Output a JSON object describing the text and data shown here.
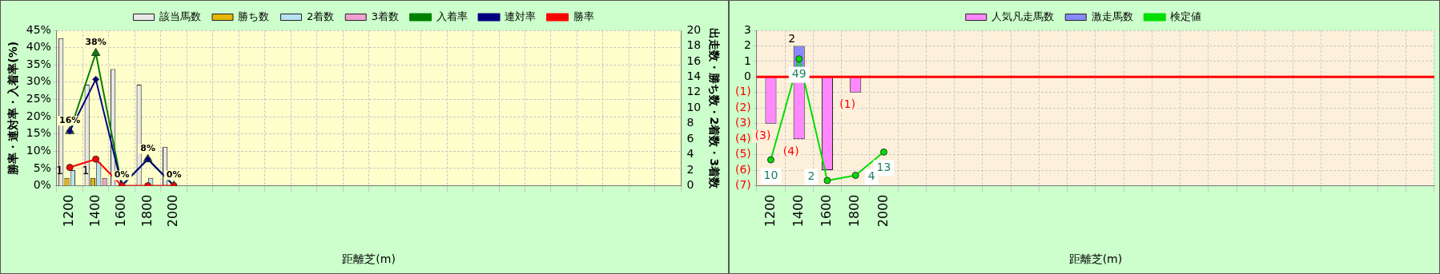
{
  "chart_data": [
    {
      "type": "bar",
      "xlabel": "距離芝(m)",
      "ylabel": "勝率・連対率・入着率(%)",
      "y2label": "出走数・勝ち数・2着数・3着数",
      "categories": [
        "1200",
        "1400",
        "1600",
        "1800",
        "2000",
        null,
        null,
        null,
        null,
        null,
        null,
        null,
        null,
        null,
        null,
        null,
        null,
        null,
        null,
        null,
        null,
        null,
        null,
        null
      ],
      "series": [
        {
          "name": "該当馬数",
          "type": "bar",
          "axis": "y2",
          "color": "#e8e8e8",
          "values": [
            19,
            13,
            15,
            13,
            5,
            null,
            null,
            null,
            null,
            null,
            null,
            null,
            null,
            null,
            null,
            null,
            null,
            null,
            null,
            null,
            null,
            null,
            null,
            null
          ]
        },
        {
          "name": "勝ち数",
          "type": "bar",
          "axis": "y2",
          "color": "#e6b800",
          "values": [
            1,
            1,
            0,
            0,
            0,
            null,
            null,
            null,
            null,
            null,
            null,
            null,
            null,
            null,
            null,
            null,
            null,
            null,
            null,
            null,
            null,
            null,
            null,
            null
          ],
          "value_labels": [
            "1",
            "1",
            null,
            null,
            null,
            null,
            null,
            null,
            null,
            null,
            null,
            null,
            null,
            null,
            null,
            null,
            null,
            null,
            null,
            null,
            null,
            null,
            null,
            null
          ]
        },
        {
          "name": "2着数",
          "type": "bar",
          "axis": "y2",
          "color": "#b4e4f4",
          "values": [
            2,
            3,
            0,
            1,
            0,
            null,
            null,
            null,
            null,
            null,
            null,
            null,
            null,
            null,
            null,
            null,
            null,
            null,
            null,
            null,
            null,
            null,
            null,
            null
          ]
        },
        {
          "name": "3着数",
          "type": "bar",
          "axis": "y2",
          "color": "#f0a0d0",
          "values": [
            0,
            1,
            0,
            0,
            0,
            null,
            null,
            null,
            null,
            null,
            null,
            null,
            null,
            null,
            null,
            null,
            null,
            null,
            null,
            null,
            null,
            null,
            null,
            null
          ]
        },
        {
          "name": "入着率",
          "type": "line",
          "color": "#008000",
          "marker": "triangle",
          "values": [
            15.8,
            38.4,
            0,
            7.7,
            0,
            null,
            null,
            null,
            null,
            null,
            null,
            null,
            null,
            null,
            null,
            null,
            null,
            null,
            null,
            null,
            null,
            null,
            null,
            null
          ],
          "value_labels": [
            "16%",
            "38%",
            "0%",
            "8%",
            "0%",
            null,
            null,
            null,
            null,
            null,
            null,
            null,
            null,
            null,
            null,
            null,
            null,
            null,
            null,
            null,
            null,
            null,
            null,
            null
          ]
        },
        {
          "name": "連対率",
          "type": "line",
          "color": "#000080",
          "marker": "diamond",
          "values": [
            15.8,
            30.8,
            0,
            7.7,
            0,
            null,
            null,
            null,
            null,
            null,
            null,
            null,
            null,
            null,
            null,
            null,
            null,
            null,
            null,
            null,
            null,
            null,
            null,
            null
          ]
        },
        {
          "name": "勝率",
          "type": "line",
          "color": "#ff0000",
          "marker": "circle",
          "values": [
            5.3,
            7.7,
            0,
            0,
            0,
            null,
            null,
            null,
            null,
            null,
            null,
            null,
            null,
            null,
            null,
            null,
            null,
            null,
            null,
            null,
            null,
            null,
            null,
            null
          ]
        }
      ],
      "ylim": [
        0,
        45
      ],
      "yticks": [
        {
          "value": 0,
          "label": "0%"
        },
        {
          "value": 5,
          "label": "5%"
        },
        {
          "value": 10,
          "label": "10%"
        },
        {
          "value": 15,
          "label": "15%"
        },
        {
          "value": 20,
          "label": "20%"
        },
        {
          "value": 25,
          "label": "25%"
        },
        {
          "value": 30,
          "label": "30%"
        },
        {
          "value": 35,
          "label": "35%"
        },
        {
          "value": 40,
          "label": "40%"
        },
        {
          "value": 45,
          "label": "45%"
        }
      ],
      "y2lim": [
        0,
        20
      ],
      "y2ticks": [
        0,
        2,
        4,
        6,
        8,
        10,
        12,
        14,
        16,
        18,
        20
      ],
      "grid": true,
      "legend": "top"
    },
    {
      "type": "bar",
      "stacked": true,
      "xlabel": "距離芝(m)",
      "categories": [
        "1200",
        "1400",
        "1600",
        "1800",
        "2000",
        null,
        null,
        null,
        null,
        null,
        null,
        null,
        null,
        null,
        null,
        null,
        null,
        null,
        null,
        null,
        null,
        null,
        null,
        null
      ],
      "series": [
        {
          "name": "人気凡走馬数",
          "color": "#ff88ff",
          "values": [
            -3,
            -4,
            -6,
            -1,
            null,
            null,
            null,
            null,
            null,
            null,
            null,
            null,
            null,
            null,
            null,
            null,
            null,
            null,
            null,
            null,
            null,
            null,
            null,
            null
          ],
          "value_labels": [
            "(3)",
            "(4)",
            null,
            "(1)",
            null,
            null,
            null,
            null,
            null,
            null,
            null,
            null,
            null,
            null,
            null,
            null,
            null,
            null,
            null,
            null,
            null,
            null,
            null,
            null
          ]
        },
        {
          "name": "激走馬数",
          "color": "#8888ff",
          "values": [
            null,
            2,
            null,
            null,
            null,
            null,
            null,
            null,
            null,
            null,
            null,
            null,
            null,
            null,
            null,
            null,
            null,
            null,
            null,
            null,
            null,
            null,
            null,
            null
          ],
          "value_labels": [
            null,
            "2",
            null,
            null,
            null,
            null,
            null,
            null,
            null,
            null,
            null,
            null,
            null,
            null,
            null,
            null,
            null,
            null,
            null,
            null,
            null,
            null,
            null,
            null
          ]
        },
        {
          "name": "検定値",
          "type": "line",
          "axis": "y2",
          "color": "#00dd00",
          "marker": "circle",
          "values": [
            10,
            49,
            2,
            4,
            13,
            null,
            null,
            null,
            null,
            null,
            null,
            null,
            null,
            null,
            null,
            null,
            null,
            null,
            null,
            null,
            null,
            null,
            null,
            null
          ],
          "value_labels": [
            "10",
            "49",
            "2",
            "4",
            "13",
            null,
            null,
            null,
            null,
            null,
            null,
            null,
            null,
            null,
            null,
            null,
            null,
            null,
            null,
            null,
            null,
            null,
            null,
            null
          ]
        }
      ],
      "ylim": [
        -7,
        3
      ],
      "yticks": [
        3,
        2,
        1,
        0,
        {
          "value": -1,
          "label": "(1)"
        },
        {
          "value": -2,
          "label": "(2)"
        },
        {
          "value": -3,
          "label": "(3)"
        },
        {
          "value": -4,
          "label": "(4)"
        },
        {
          "value": -5,
          "label": "(5)"
        },
        {
          "value": -6,
          "label": "(6)"
        },
        {
          "value": -7,
          "label": "(7)"
        }
      ],
      "y2lim": [
        0,
        60
      ],
      "ref_lines": [
        {
          "axis": "y",
          "value": 0,
          "color": "#ff0000"
        }
      ],
      "grid": true,
      "legend": "top"
    }
  ]
}
